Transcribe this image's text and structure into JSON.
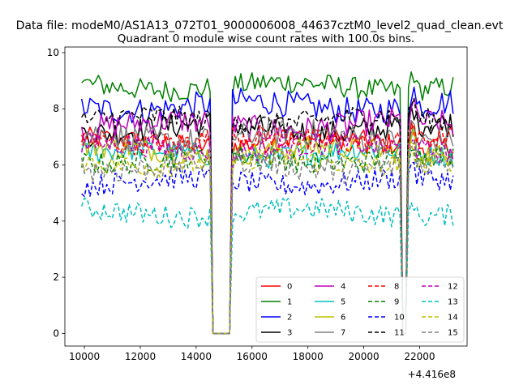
{
  "chart_data": {
    "type": "line",
    "suptitle": "Data file: modeM0/AS1A13_072T01_9000006008_44637cztM0_level2_quad_clean.evt",
    "title": "Quadrant 0 module wise count rates with 100.0s bins.",
    "xlabel": "",
    "ylabel": "",
    "x_offset_label": "+4.416e8",
    "xlim": [
      9300,
      23700
    ],
    "ylim": [
      -0.45,
      10.2
    ],
    "x_ticks": [
      10000,
      12000,
      14000,
      16000,
      18000,
      20000,
      22000
    ],
    "y_ticks": [
      0,
      2,
      4,
      6,
      8,
      10
    ],
    "x_tick_labels": [
      "10000",
      "12000",
      "14000",
      "16000",
      "18000",
      "20000",
      "22000"
    ],
    "y_tick_labels": [
      "0",
      "2",
      "4",
      "6",
      "8",
      "10"
    ],
    "x_start": 9900,
    "x_step": 100,
    "x_end": 23200,
    "gaps": [
      [
        14550,
        15250
      ],
      [
        21350,
        21550
      ]
    ],
    "legend": {
      "placement": "lower-right",
      "ncol": 4
    },
    "series": [
      {
        "name": "0",
        "color": "#ff0000",
        "dash": "solid",
        "base": 6.8,
        "noise": 0.25
      },
      {
        "name": "1",
        "color": "#008000",
        "dash": "solid",
        "base": 8.8,
        "noise": 0.25
      },
      {
        "name": "2",
        "color": "#0000ff",
        "dash": "solid",
        "base": 8.1,
        "noise": 0.3
      },
      {
        "name": "3",
        "color": "#000000",
        "dash": "solid",
        "base": 7.3,
        "noise": 0.3
      },
      {
        "name": "4",
        "color": "#bf00bf",
        "dash": "solid",
        "base": 7.4,
        "noise": 0.3
      },
      {
        "name": "5",
        "color": "#00bfbf",
        "dash": "solid",
        "base": 6.4,
        "noise": 0.25
      },
      {
        "name": "6",
        "color": "#bfbf00",
        "dash": "solid",
        "base": 6.5,
        "noise": 0.25
      },
      {
        "name": "7",
        "color": "#808080",
        "dash": "solid",
        "base": 7.0,
        "noise": 0.3
      },
      {
        "name": "8",
        "color": "#ff0000",
        "dash": "dashed",
        "base": 6.9,
        "noise": 0.25
      },
      {
        "name": "9",
        "color": "#008000",
        "dash": "dashed",
        "base": 6.2,
        "noise": 0.25
      },
      {
        "name": "10",
        "color": "#0000ff",
        "dash": "dashed",
        "base": 5.4,
        "noise": 0.25
      },
      {
        "name": "11",
        "color": "#000000",
        "dash": "dashed",
        "base": 7.6,
        "noise": 0.25
      },
      {
        "name": "12",
        "color": "#bf00bf",
        "dash": "dashed",
        "base": 6.6,
        "noise": 0.25
      },
      {
        "name": "13",
        "color": "#00bfbf",
        "dash": "dashed",
        "base": 4.3,
        "noise": 0.25
      },
      {
        "name": "14",
        "color": "#bfbf00",
        "dash": "dashed",
        "base": 6.1,
        "noise": 0.25
      },
      {
        "name": "15",
        "color": "#808080",
        "dash": "dashed",
        "base": 6.0,
        "noise": 0.3
      }
    ]
  }
}
